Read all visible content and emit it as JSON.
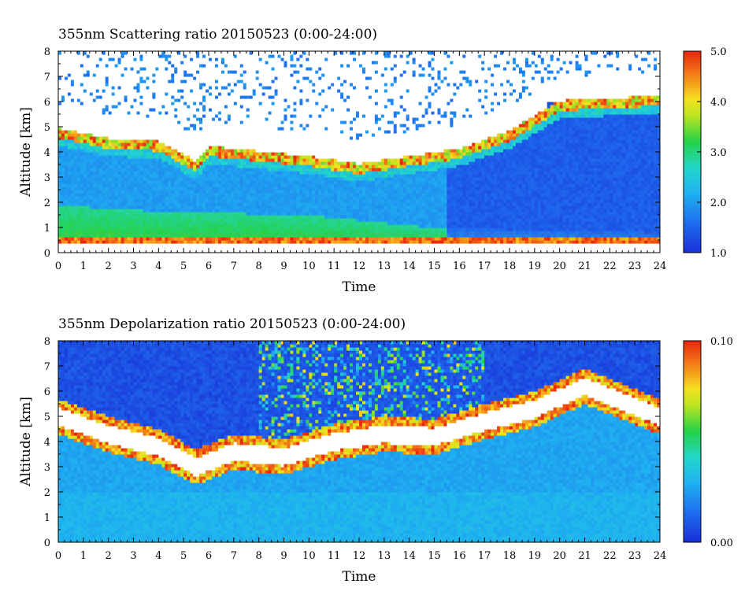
{
  "chart_data": [
    {
      "type": "heatmap",
      "title": "355nm Scattering ratio  20150523 (0:00-24:00)",
      "xlabel": "Time",
      "ylabel": "Altitude [km]",
      "xlim": [
        0,
        24
      ],
      "ylim": [
        0,
        8
      ],
      "x_ticks": [
        "0",
        "1",
        "2",
        "3",
        "4",
        "5",
        "6",
        "7",
        "8",
        "9",
        "10",
        "11",
        "12",
        "13",
        "14",
        "15",
        "16",
        "17",
        "18",
        "19",
        "20",
        "21",
        "22",
        "23",
        "24"
      ],
      "y_ticks": [
        "0",
        "1",
        "2",
        "3",
        "4",
        "5",
        "6",
        "7",
        "8"
      ],
      "colorbar": {
        "min": 1.0,
        "max": 5.0,
        "tick_labels": [
          "1.0",
          "2.0",
          "3.0",
          "4.0",
          "5.0"
        ],
        "tick_values": [
          1.0,
          2.0,
          3.0,
          4.0,
          5.0
        ]
      },
      "colors": {
        "low": "#1a2fd6",
        "high": "#e8240c",
        "saturated": "#ffffff"
      },
      "profile_features": {
        "boundary_layer_top_km": [
          [
            0,
            0.5
          ],
          [
            24,
            0.5
          ]
        ],
        "cloud_base_km": [
          [
            0,
            4.7
          ],
          [
            2,
            4.3
          ],
          [
            4,
            4.2
          ],
          [
            5.5,
            3.4
          ],
          [
            6,
            4.0
          ],
          [
            8,
            3.8
          ],
          [
            10,
            3.6
          ],
          [
            12,
            3.3
          ],
          [
            14,
            3.6
          ],
          [
            16,
            3.9
          ],
          [
            18,
            4.6
          ],
          [
            20,
            5.8
          ],
          [
            24,
            6.0
          ]
        ],
        "dust_layer_top_km": [
          [
            0,
            1.9
          ],
          [
            3,
            1.7
          ],
          [
            6,
            1.6
          ],
          [
            10,
            1.5
          ],
          [
            15,
            1.0
          ],
          [
            24,
            0.8
          ]
        ]
      }
    },
    {
      "type": "heatmap",
      "title": "355nm Depolarization ratio  20150523 (0:00-24:00)",
      "xlabel": "Time",
      "ylabel": "Altitude [km]",
      "xlim": [
        0,
        24
      ],
      "ylim": [
        0,
        8
      ],
      "x_ticks": [
        "0",
        "1",
        "2",
        "3",
        "4",
        "5",
        "6",
        "7",
        "8",
        "9",
        "10",
        "11",
        "12",
        "13",
        "14",
        "15",
        "16",
        "17",
        "18",
        "19",
        "20",
        "21",
        "22",
        "23",
        "24"
      ],
      "y_ticks": [
        "0",
        "1",
        "2",
        "3",
        "4",
        "5",
        "6",
        "7",
        "8"
      ],
      "colorbar": {
        "min": 0.0,
        "max": 0.1,
        "tick_labels": [
          "0.00",
          "0.10"
        ],
        "tick_values": [
          0.0,
          0.1
        ]
      },
      "colors": {
        "low": "#1a2fd6",
        "high": "#e8240c",
        "saturated": "#ffffff"
      },
      "profile_features": {
        "cloud_layer_km": [
          [
            0,
            5.0
          ],
          [
            2,
            4.3
          ],
          [
            4,
            3.8
          ],
          [
            5.5,
            3.0
          ],
          [
            7,
            3.6
          ],
          [
            9,
            3.4
          ],
          [
            11,
            4.0
          ],
          [
            13,
            4.3
          ],
          [
            15,
            4.2
          ],
          [
            17,
            4.8
          ],
          [
            19,
            5.3
          ],
          [
            21,
            6.2
          ],
          [
            24,
            5.0
          ]
        ]
      }
    }
  ]
}
